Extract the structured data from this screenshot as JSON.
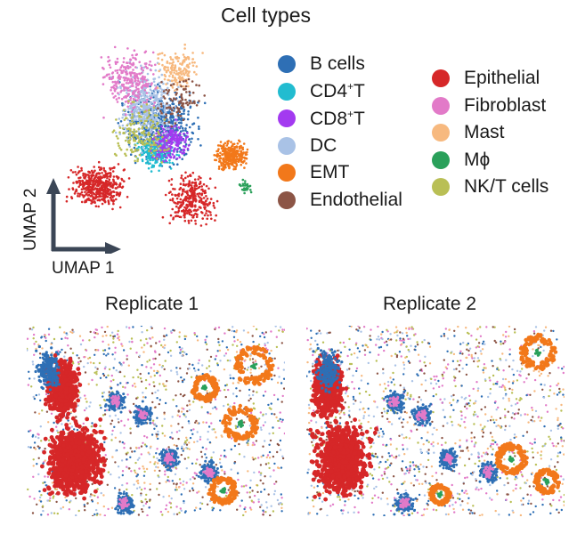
{
  "figure": {
    "title": "Cell types",
    "umap_axes": {
      "x_label": "UMAP 1",
      "y_label": "UMAP 2"
    },
    "panels": [
      {
        "title": "Replicate 1"
      },
      {
        "title": "Replicate 2"
      }
    ]
  },
  "legend": {
    "column_1": [
      {
        "label": "B cells",
        "color": "#2e6fb5"
      },
      {
        "label": "CD4",
        "sup": "+",
        "suffix": "T",
        "color": "#22bcd0"
      },
      {
        "label": "CD8",
        "sup": "+",
        "suffix": "T",
        "color": "#a33af0"
      },
      {
        "label": "DC",
        "color": "#a9c2e6"
      },
      {
        "label": "EMT",
        "color": "#f2781a"
      },
      {
        "label": "Endothelial",
        "color": "#8c5546"
      }
    ],
    "column_2": [
      {
        "label": "Epithelial",
        "color": "#d62728"
      },
      {
        "label": "Fibroblast",
        "color": "#e27ac8"
      },
      {
        "label": "Mast",
        "color": "#f7b97f"
      },
      {
        "label": "Mϕ",
        "color": "#2aa05a"
      },
      {
        "label": "NK/T cells",
        "color": "#b9bf55"
      }
    ]
  }
}
